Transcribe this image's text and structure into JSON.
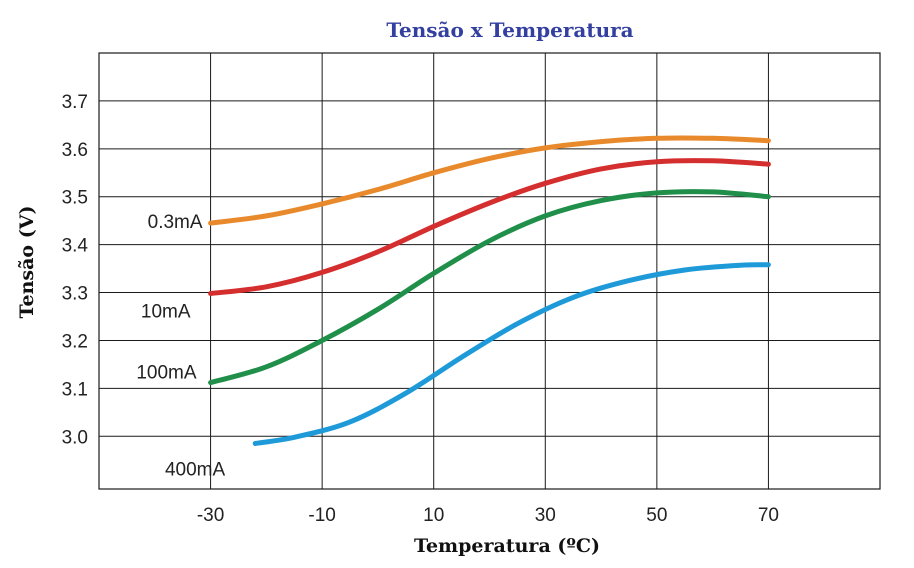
{
  "chart_data": {
    "type": "line",
    "title": "Tensão x Temperatura",
    "xlabel": "Temperatura (ºC)",
    "ylabel": "Tensão (V)",
    "x_ticks": [
      "-30",
      "-10",
      "10",
      "30",
      "50",
      "70"
    ],
    "y_ticks": [
      "3.0",
      "3.1",
      "3.2",
      "3.3",
      "3.4",
      "3.5",
      "3.6",
      "3.7"
    ],
    "xlim": [
      -50,
      90
    ],
    "ylim": [
      2.89,
      3.8
    ],
    "grid": true,
    "series": [
      {
        "name": "0.3mA",
        "color": "#e88a2c",
        "points": [
          [
            -30,
            3.445
          ],
          [
            -20,
            3.46
          ],
          [
            -10,
            3.485
          ],
          [
            0,
            3.515
          ],
          [
            10,
            3.55
          ],
          [
            20,
            3.58
          ],
          [
            30,
            3.602
          ],
          [
            40,
            3.615
          ],
          [
            50,
            3.622
          ],
          [
            60,
            3.622
          ],
          [
            70,
            3.617
          ]
        ]
      },
      {
        "name": "10mA",
        "color": "#d42e2e",
        "points": [
          [
            -30,
            3.298
          ],
          [
            -20,
            3.312
          ],
          [
            -10,
            3.342
          ],
          [
            0,
            3.385
          ],
          [
            10,
            3.438
          ],
          [
            20,
            3.487
          ],
          [
            30,
            3.528
          ],
          [
            40,
            3.558
          ],
          [
            50,
            3.573
          ],
          [
            60,
            3.575
          ],
          [
            70,
            3.568
          ]
        ]
      },
      {
        "name": "100mA",
        "color": "#1f8f4a",
        "points": [
          [
            -30,
            3.112
          ],
          [
            -20,
            3.145
          ],
          [
            -10,
            3.2
          ],
          [
            0,
            3.265
          ],
          [
            10,
            3.34
          ],
          [
            20,
            3.408
          ],
          [
            30,
            3.46
          ],
          [
            40,
            3.492
          ],
          [
            50,
            3.508
          ],
          [
            60,
            3.51
          ],
          [
            70,
            3.5
          ]
        ]
      },
      {
        "name": "400mA",
        "color": "#1f9ad8",
        "points": [
          [
            -22,
            2.985
          ],
          [
            -15,
            2.998
          ],
          [
            -5,
            3.03
          ],
          [
            5,
            3.09
          ],
          [
            15,
            3.165
          ],
          [
            25,
            3.235
          ],
          [
            35,
            3.29
          ],
          [
            45,
            3.325
          ],
          [
            55,
            3.347
          ],
          [
            65,
            3.357
          ],
          [
            70,
            3.358
          ]
        ]
      }
    ]
  }
}
